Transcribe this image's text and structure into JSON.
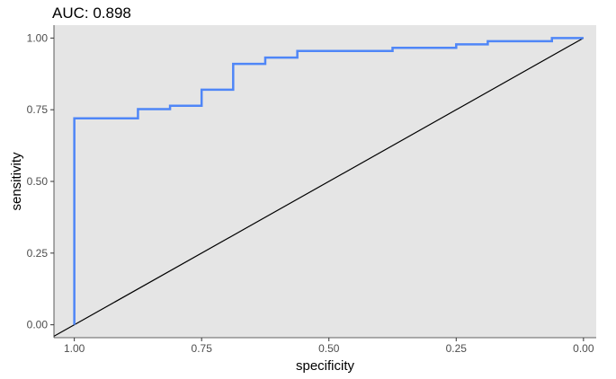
{
  "chart_data": {
    "type": "line",
    "title": "AUC: 0.898",
    "xlabel": "specificity",
    "ylabel": "sensitivity",
    "x_reversed": true,
    "xlim": [
      1.04,
      -0.025
    ],
    "ylim": [
      -0.045,
      1.045
    ],
    "x_ticks": [
      1.0,
      0.75,
      0.5,
      0.25,
      0.0
    ],
    "x_tick_labels": [
      "1.00",
      "0.75",
      "0.50",
      "0.25",
      "0.00"
    ],
    "y_ticks": [
      0.0,
      0.25,
      0.5,
      0.75,
      1.0
    ],
    "y_tick_labels": [
      "0.00",
      "0.25",
      "0.50",
      "0.75",
      "1.00"
    ],
    "grid": false,
    "panel_background": "#e5e5e5",
    "series": [
      {
        "color": "#4f86f7",
        "points": [
          [
            1.0,
            0.0
          ],
          [
            1.0,
            0.72
          ],
          [
            0.875,
            0.72
          ],
          [
            0.875,
            0.752
          ],
          [
            0.812,
            0.752
          ],
          [
            0.812,
            0.764
          ],
          [
            0.75,
            0.764
          ],
          [
            0.75,
            0.82
          ],
          [
            0.688,
            0.82
          ],
          [
            0.688,
            0.91
          ],
          [
            0.625,
            0.91
          ],
          [
            0.625,
            0.932
          ],
          [
            0.562,
            0.932
          ],
          [
            0.562,
            0.955
          ],
          [
            0.375,
            0.955
          ],
          [
            0.375,
            0.966
          ],
          [
            0.25,
            0.966
          ],
          [
            0.25,
            0.978
          ],
          [
            0.188,
            0.978
          ],
          [
            0.188,
            0.989
          ],
          [
            0.062,
            0.989
          ],
          [
            0.062,
            1.0
          ],
          [
            0.0,
            1.0
          ]
        ]
      }
    ],
    "reference_line": {
      "from": [
        1.04,
        -0.04
      ],
      "to": [
        0.0,
        1.0
      ],
      "color": "#000000"
    }
  }
}
